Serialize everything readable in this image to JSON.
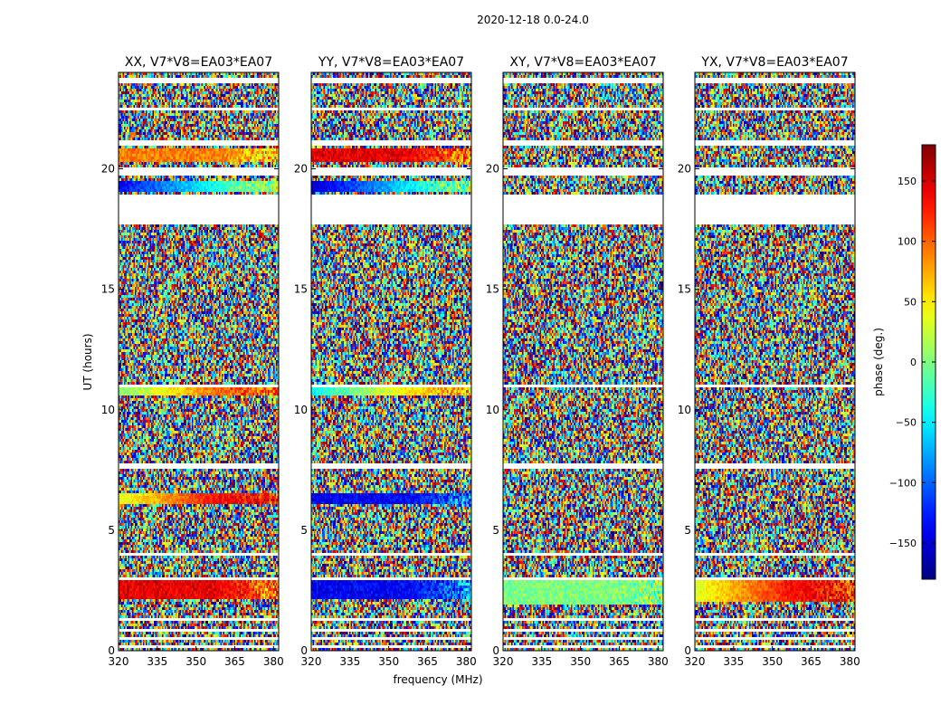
{
  "chart_data": {
    "type": "heatmap",
    "title": "2020-12-18 0.0-24.0",
    "xlabel": "frequency (MHz)",
    "ylabel": "UT (hours)",
    "x_ticks": [
      "320",
      "335",
      "350",
      "365",
      "380"
    ],
    "y_ticks": [
      "0",
      "5",
      "10",
      "15",
      "20"
    ],
    "xlim": [
      320,
      382
    ],
    "ylim": [
      0,
      24
    ],
    "colorbar": {
      "label": "phase (deg.)",
      "ticks": [
        "150",
        "100",
        "50",
        "0",
        "−50",
        "−100",
        "−150"
      ],
      "tick_values": [
        150,
        100,
        50,
        0,
        -50,
        -100,
        -150
      ],
      "range": [
        -180,
        180
      ],
      "colormap": "jet"
    },
    "panels": [
      {
        "title": "XX, V7*V8=EA03*EA07",
        "pol": "XX",
        "coherent": [
          [
            2.1,
            2.9,
            "red"
          ],
          [
            6.1,
            6.5,
            "red-orange"
          ],
          [
            10.6,
            11.0,
            "yellow-red"
          ],
          [
            19.0,
            19.5,
            "blue-red"
          ],
          [
            20.3,
            20.9,
            "orange"
          ]
        ]
      },
      {
        "title": "YY, V7*V8=EA03*EA07",
        "pol": "YY",
        "coherent": [
          [
            2.1,
            2.9,
            "blue"
          ],
          [
            6.1,
            6.5,
            "blue"
          ],
          [
            10.6,
            11.0,
            "red-blue"
          ],
          [
            19.0,
            19.5,
            "blue-green"
          ],
          [
            20.3,
            20.9,
            "red"
          ]
        ]
      },
      {
        "title": "XY, V7*V8=EA03*EA07",
        "pol": "XY",
        "coherent": [
          [
            1.9,
            2.9,
            "green"
          ]
        ]
      },
      {
        "title": "YX, V7*V8=EA03*EA07",
        "pol": "YX",
        "coherent": [
          [
            2.0,
            2.9,
            "red-orange"
          ]
        ]
      }
    ],
    "blank_time_ranges_hours": [
      [
        0.12,
        0.2
      ],
      [
        0.45,
        0.52
      ],
      [
        0.78,
        0.85
      ],
      [
        1.2,
        1.32
      ],
      [
        1.55,
        1.62
      ],
      [
        2.98,
        3.05
      ],
      [
        3.9,
        4.05
      ],
      [
        7.6,
        7.75
      ],
      [
        10.95,
        11.05
      ],
      [
        17.65,
        18.9
      ],
      [
        19.7,
        20.1
      ],
      [
        21.0,
        21.15
      ],
      [
        22.45,
        22.55
      ],
      [
        23.6,
        23.75
      ]
    ],
    "background": "random phase noise (-180 to 180 deg) across all frequencies"
  }
}
